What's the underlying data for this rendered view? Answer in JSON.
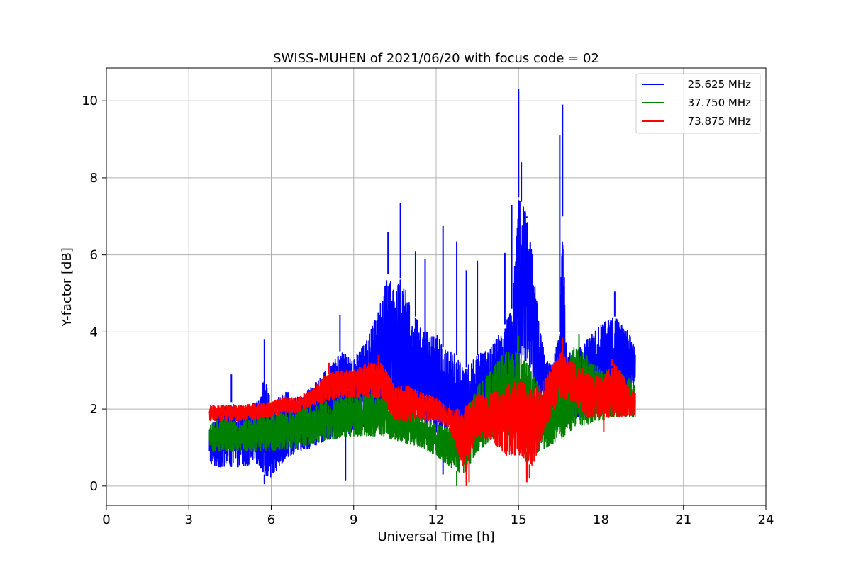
{
  "chart_data": {
    "type": "line",
    "title": "SWISS-MUHEN of 2021/06/20 with focus code = 02",
    "xlabel": "Universal Time [h]",
    "ylabel": "Y-factor [dB]",
    "xlim": [
      0,
      24
    ],
    "ylim": [
      -0.5,
      10.85
    ],
    "xticks": [
      0,
      3,
      6,
      9,
      12,
      15,
      18,
      21,
      24
    ],
    "yticks": [
      0,
      2,
      4,
      6,
      8,
      10
    ],
    "grid": true,
    "legend_position": "top-right",
    "series": [
      {
        "name": "25.625 MHz",
        "color": "#0000ff",
        "x": [
          3.75,
          4.0,
          4.5,
          5.0,
          5.5,
          5.75,
          6.0,
          6.5,
          7.0,
          7.5,
          8.0,
          8.5,
          9.0,
          9.5,
          10.0,
          10.25,
          10.5,
          10.75,
          11.0,
          11.5,
          12.0,
          12.25,
          12.5,
          12.75,
          13.0,
          13.5,
          14.0,
          14.5,
          14.75,
          15.0,
          15.25,
          15.5,
          15.75,
          16.0,
          16.25,
          16.5,
          16.6,
          16.75,
          17.0,
          17.5,
          18.0,
          18.5,
          19.0,
          19.25
        ],
        "lo": [
          0.6,
          0.5,
          0.5,
          0.5,
          0.6,
          0.3,
          0.2,
          0.7,
          0.9,
          1.0,
          1.2,
          1.3,
          1.4,
          1.6,
          1.8,
          1.7,
          1.5,
          1.8,
          1.6,
          1.7,
          1.3,
          1.4,
          1.4,
          1.2,
          1.0,
          1.2,
          1.6,
          1.8,
          2.2,
          3.0,
          3.2,
          2.8,
          2.2,
          1.8,
          1.6,
          2.0,
          2.2,
          2.0,
          1.8,
          1.8,
          2.2,
          2.5,
          2.5,
          2.5
        ],
        "hi": [
          1.5,
          1.8,
          2.2,
          2.0,
          2.2,
          2.8,
          2.2,
          2.5,
          2.3,
          2.6,
          3.0,
          3.5,
          3.3,
          3.8,
          4.8,
          5.5,
          5.0,
          5.5,
          4.8,
          4.0,
          4.0,
          3.6,
          3.5,
          3.4,
          3.0,
          3.4,
          3.6,
          4.2,
          4.6,
          7.5,
          7.2,
          6.0,
          4.2,
          3.2,
          3.3,
          4.0,
          7.0,
          3.5,
          3.4,
          3.8,
          4.2,
          4.4,
          4.0,
          3.6
        ],
        "spikes": [
          [
            4.55,
            2.9
          ],
          [
            5.75,
            3.8
          ],
          [
            8.5,
            4.45
          ],
          [
            8.7,
            0.15
          ],
          [
            10.25,
            6.6
          ],
          [
            10.7,
            7.35
          ],
          [
            11.25,
            6.1
          ],
          [
            11.6,
            5.9
          ],
          [
            12.25,
            6.75
          ],
          [
            12.75,
            6.35
          ],
          [
            13.1,
            5.6
          ],
          [
            13.5,
            5.85
          ],
          [
            14.5,
            6.05
          ],
          [
            14.75,
            7.3
          ],
          [
            15.0,
            10.3
          ],
          [
            15.1,
            8.4
          ],
          [
            15.3,
            7.0
          ],
          [
            16.5,
            9.1
          ],
          [
            16.6,
            9.9
          ],
          [
            18.5,
            5.05
          ]
        ],
        "dips": [
          [
            5.75,
            0.05
          ],
          [
            8.7,
            0.15
          ],
          [
            12.25,
            0.3
          ]
        ]
      },
      {
        "name": "37.750 MHz",
        "color": "#008000",
        "x": [
          3.75,
          4.0,
          5.0,
          6.0,
          7.0,
          8.0,
          9.0,
          10.0,
          10.5,
          11.0,
          11.5,
          12.0,
          12.5,
          13.0,
          13.5,
          14.0,
          14.5,
          15.0,
          15.5,
          16.0,
          16.5,
          17.0,
          17.5,
          18.0,
          18.5,
          19.0,
          19.25
        ],
        "lo": [
          0.9,
          0.9,
          0.9,
          0.9,
          1.0,
          1.2,
          1.3,
          1.3,
          1.2,
          1.1,
          1.0,
          0.8,
          0.5,
          0.3,
          0.9,
          1.2,
          1.3,
          1.0,
          0.8,
          1.0,
          1.2,
          1.5,
          1.6,
          1.7,
          1.8,
          1.8,
          1.8
        ],
        "hi": [
          1.6,
          1.7,
          1.7,
          1.9,
          2.0,
          2.2,
          2.4,
          2.4,
          2.2,
          2.0,
          1.8,
          1.6,
          1.5,
          1.8,
          2.6,
          3.0,
          3.5,
          3.5,
          3.0,
          2.2,
          2.6,
          3.6,
          3.4,
          3.0,
          3.0,
          2.8,
          2.6
        ],
        "spikes": [
          [
            15.0,
            3.9
          ],
          [
            17.2,
            3.95
          ]
        ],
        "dips": [
          [
            12.75,
            0.0
          ],
          [
            13.1,
            0.1
          ],
          [
            15.3,
            0.2
          ]
        ]
      },
      {
        "name": "73.875 MHz",
        "color": "#ff0000",
        "x": [
          3.75,
          4.0,
          5.0,
          6.0,
          6.5,
          7.0,
          7.5,
          8.0,
          8.5,
          9.0,
          9.5,
          10.0,
          10.5,
          11.0,
          11.5,
          12.0,
          12.5,
          13.0,
          13.5,
          14.0,
          14.5,
          15.0,
          15.5,
          16.0,
          16.5,
          17.0,
          17.5,
          18.0,
          18.5,
          19.0,
          19.25
        ],
        "lo": [
          1.7,
          1.7,
          1.7,
          1.8,
          1.9,
          1.9,
          2.1,
          2.2,
          2.3,
          2.3,
          2.3,
          2.3,
          1.7,
          1.7,
          1.7,
          1.7,
          1.5,
          0.4,
          1.3,
          1.2,
          0.8,
          0.8,
          0.5,
          1.5,
          2.3,
          2.2,
          1.8,
          1.8,
          1.8,
          1.8,
          1.8
        ],
        "hi": [
          2.1,
          2.1,
          2.1,
          2.2,
          2.3,
          2.3,
          2.5,
          2.9,
          3.0,
          3.0,
          3.2,
          3.2,
          2.6,
          2.6,
          2.4,
          2.3,
          2.0,
          2.0,
          2.4,
          2.4,
          2.6,
          2.8,
          2.5,
          2.8,
          3.5,
          3.2,
          3.0,
          2.8,
          3.2,
          2.6,
          2.4
        ],
        "spikes": [
          [
            8.1,
            3.2
          ],
          [
            9.9,
            3.4
          ],
          [
            16.6,
            3.85
          ],
          [
            18.4,
            3.3
          ]
        ],
        "dips": [
          [
            13.1,
            0.0
          ],
          [
            13.2,
            0.1
          ],
          [
            15.3,
            0.1
          ],
          [
            15.4,
            0.2
          ],
          [
            18.1,
            1.4
          ]
        ]
      }
    ]
  }
}
